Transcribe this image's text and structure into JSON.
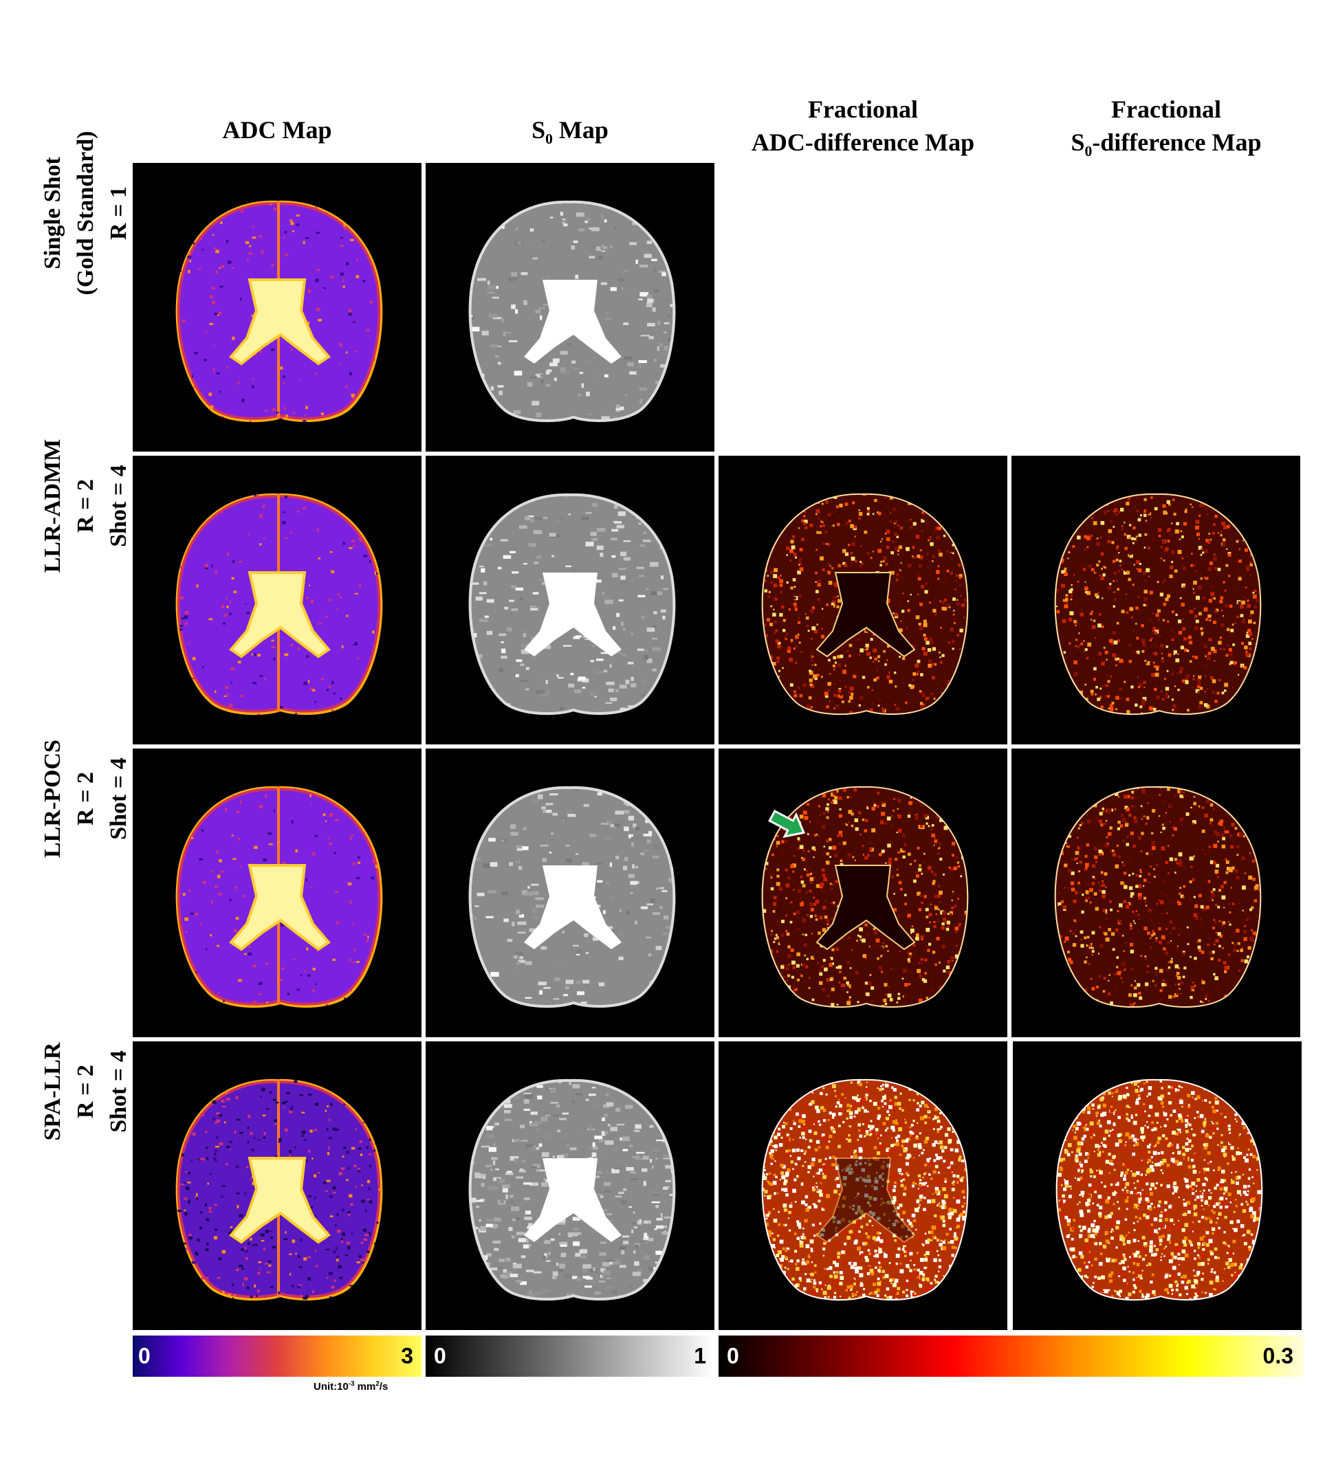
{
  "columns": [
    {
      "id": "adc",
      "line1": "ADC Map"
    },
    {
      "id": "s0",
      "pre": "S",
      "sub": "0",
      "post": " Map"
    },
    {
      "id": "fadc",
      "line1": "Fractional",
      "line2": "ADC-difference  Map"
    },
    {
      "id": "fs0",
      "line1": "Fractional",
      "pre": "S",
      "sub": "0",
      "post": "-difference  Map"
    }
  ],
  "rows": [
    {
      "id": "single-shot",
      "lines": [
        "Single Shot",
        "(Gold Standard)",
        "R = 1"
      ]
    },
    {
      "id": "llr-admm",
      "lines": [
        "LLR-ADMM",
        "R = 2",
        "Shot = 4"
      ]
    },
    {
      "id": "llr-pocs",
      "lines": [
        "LLR-POCS",
        "R = 2",
        "Shot = 4"
      ]
    },
    {
      "id": "spa-llr",
      "lines": [
        "SPA-LLR",
        "R = 2",
        "Shot = 4"
      ]
    }
  ],
  "colorbars": {
    "adc": {
      "min": "0",
      "max": "3",
      "unit_pre": "Unit:10",
      "unit_sup": "-3",
      "unit_mid": " mm",
      "unit_sup2": "2",
      "unit_post": "/s",
      "colors": [
        "#0a0a6e",
        "#5a00d8",
        "#b020a8",
        "#e04040",
        "#ff8c1a",
        "#ffd020",
        "#ffff60"
      ]
    },
    "s0": {
      "min": "0",
      "max": "1",
      "colors": [
        "#000000",
        "#ffffff"
      ]
    },
    "diff": {
      "min": "0",
      "max": "0.3",
      "colors": [
        "#000000",
        "#7a0000",
        "#ff0000",
        "#ff8c00",
        "#ffff00",
        "#ffffe0"
      ]
    }
  },
  "annotation": {
    "arrow_color": "#1fa84f"
  }
}
